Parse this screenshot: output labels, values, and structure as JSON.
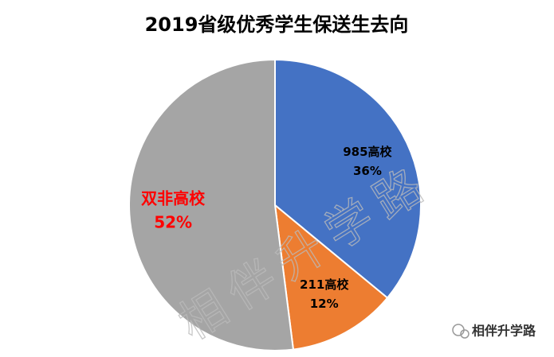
{
  "chart_data": {
    "type": "pie",
    "title": "2019省级优秀学生保送生去向",
    "categories": [
      "985高校",
      "211高校",
      "双非高校"
    ],
    "values": [
      36,
      12,
      52
    ],
    "value_labels": [
      "36%",
      "12%",
      "52%"
    ],
    "colors": [
      "#4472c4",
      "#ed7d31",
      "#a5a5a5"
    ],
    "label_colors": [
      "#000000",
      "#000000",
      "#ff0000"
    ],
    "watermark": "相伴升学路",
    "logo_text": "相伴升学路"
  }
}
